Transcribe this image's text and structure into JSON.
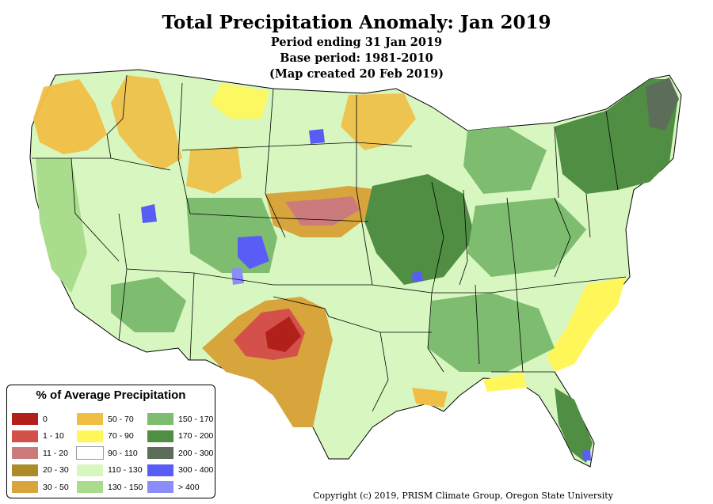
{
  "title": "Total Precipitation Anomaly: Jan 2019",
  "subtitle_lines": [
    "Period ending 31 Jan 2019",
    "Base period: 1981-2010",
    "(Map created 20 Feb 2019)"
  ],
  "legend": {
    "title": "% of Average Precipitation",
    "items": [
      {
        "label": "0",
        "color": "#b2201a"
      },
      {
        "label": "1 - 10",
        "color": "#d4504a"
      },
      {
        "label": "11 - 20",
        "color": "#cc7b7d"
      },
      {
        "label": "20 - 30",
        "color": "#ad8b2b"
      },
      {
        "label": "30 - 50",
        "color": "#d8a53c"
      },
      {
        "label": "50 - 70",
        "color": "#f1be45"
      },
      {
        "label": "70 - 90",
        "color": "#fff75a"
      },
      {
        "label": "90 - 110",
        "color": "#ffffff"
      },
      {
        "label": "110 - 130",
        "color": "#d8f7c0"
      },
      {
        "label": "130 - 150",
        "color": "#a9dc8c"
      },
      {
        "label": "150 - 170",
        "color": "#7ebd70"
      },
      {
        "label": "170 - 200",
        "color": "#4f8e43"
      },
      {
        "label": "200 - 300",
        "color": "#5c6e5a"
      },
      {
        "label": "300 - 400",
        "color": "#5a5df5"
      },
      {
        "label": "> 400",
        "color": "#8b8dfb"
      }
    ]
  },
  "copyright": "Copyright (c) 2019, PRISM Climate Group, Oregon State University"
}
